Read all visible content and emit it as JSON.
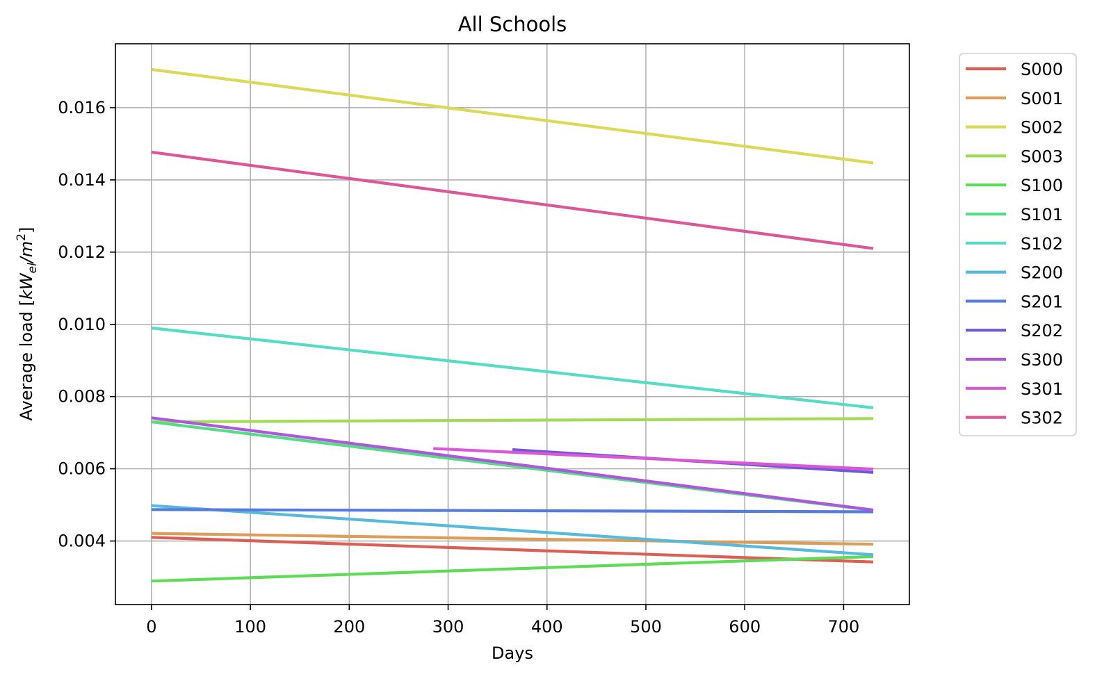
{
  "chart_data": {
    "type": "line",
    "title": "All Schools",
    "xlabel": "Days",
    "ylabel": "Average load [",
    "ylabel_math": {
      "base": "kW",
      "subscript": "el",
      "divider": "/m",
      "superscript": "2",
      "suffix": "]"
    },
    "xlim": [
      -36.5,
      766.5
    ],
    "ylim": [
      0.00224,
      0.01777
    ],
    "xticks": [
      0,
      100,
      200,
      300,
      400,
      500,
      600,
      700
    ],
    "xtick_labels": [
      "0",
      "100",
      "200",
      "300",
      "400",
      "500",
      "600",
      "700"
    ],
    "yticks": [
      0.004,
      0.006,
      0.008,
      0.01,
      0.012,
      0.014,
      0.016
    ],
    "ytick_labels": [
      "0.004",
      "0.006",
      "0.008",
      "0.010",
      "0.012",
      "0.014",
      "0.016"
    ],
    "grid": true,
    "legend_position": "outside-right-top",
    "series": [
      {
        "name": "S000",
        "color": "#db5f57",
        "x": [
          0,
          730
        ],
        "y": [
          0.0041,
          0.00342
        ]
      },
      {
        "name": "S001",
        "color": "#db9d57",
        "x": [
          0,
          730
        ],
        "y": [
          0.00421,
          0.00391
        ]
      },
      {
        "name": "S002",
        "color": "#dbd957",
        "x": [
          0,
          730
        ],
        "y": [
          0.01706,
          0.01447
        ]
      },
      {
        "name": "S003",
        "color": "#a3db57",
        "x": [
          0,
          730
        ],
        "y": [
          0.0073,
          0.00739
        ]
      },
      {
        "name": "S100",
        "color": "#5fdb57",
        "x": [
          0,
          730
        ],
        "y": [
          0.00289,
          0.00357
        ]
      },
      {
        "name": "S101",
        "color": "#57db87",
        "x": [
          0,
          730
        ],
        "y": [
          0.0073,
          0.00485
        ]
      },
      {
        "name": "S102",
        "color": "#57dbc5",
        "x": [
          0,
          730
        ],
        "y": [
          0.0099,
          0.00769
        ]
      },
      {
        "name": "S200",
        "color": "#57b9db",
        "x": [
          0,
          730
        ],
        "y": [
          0.00498,
          0.00362
        ]
      },
      {
        "name": "S201",
        "color": "#577bdb",
        "x": [
          0,
          730
        ],
        "y": [
          0.00487,
          0.00481
        ]
      },
      {
        "name": "S202",
        "color": "#6f57db",
        "x": [
          365,
          730
        ],
        "y": [
          0.00653,
          0.0059
        ]
      },
      {
        "name": "S300",
        "color": "#ad57db",
        "x": [
          0,
          730
        ],
        "y": [
          0.00741,
          0.00486
        ]
      },
      {
        "name": "S301",
        "color": "#db57d5",
        "x": [
          285,
          730
        ],
        "y": [
          0.00656,
          0.00599
        ]
      },
      {
        "name": "S302",
        "color": "#db5797",
        "x": [
          0,
          730
        ],
        "y": [
          0.01477,
          0.0121
        ]
      }
    ]
  }
}
